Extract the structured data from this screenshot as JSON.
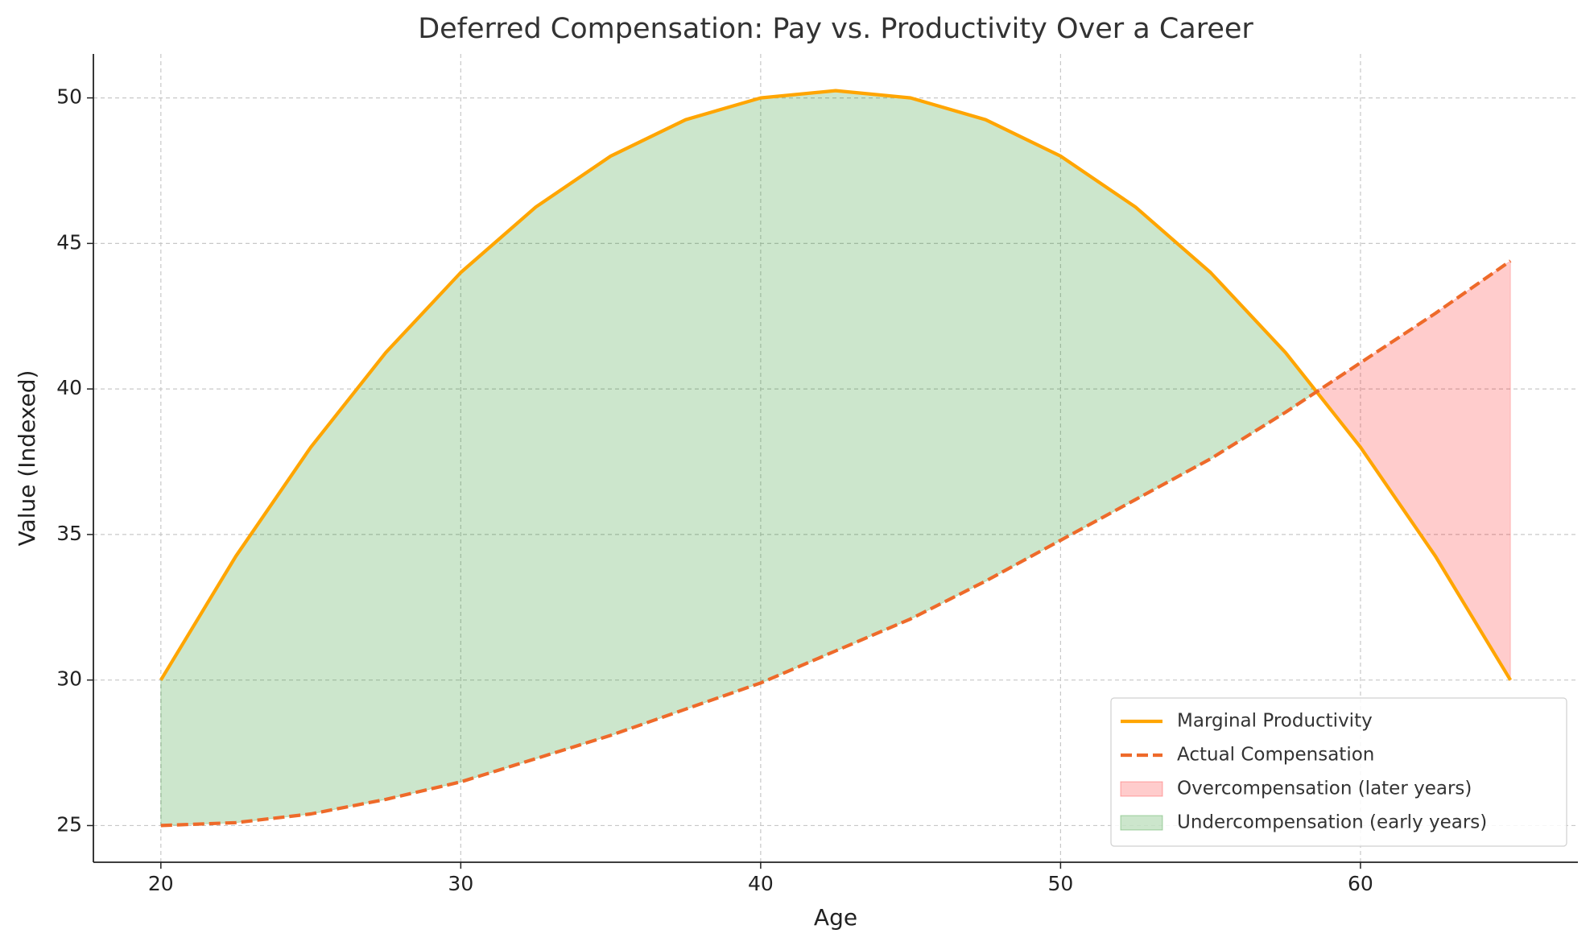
{
  "chart_data": {
    "type": "line",
    "title": "Deferred Compensation: Pay vs. Productivity Over a Career",
    "x_label": "Age",
    "y_label": "Value (Indexed)",
    "x": [
      20,
      22.5,
      25,
      27.5,
      30,
      32.5,
      35,
      37.5,
      40,
      42.5,
      45,
      47.5,
      50,
      52.5,
      55,
      57.5,
      60,
      62.5,
      65
    ],
    "series": [
      {
        "name": "Marginal Productivity",
        "color": "#ffa500",
        "dash": false,
        "values": [
          30,
          34.25,
          38,
          41.25,
          44,
          46.25,
          48,
          49.25,
          50,
          50.25,
          50,
          49.25,
          48,
          46.25,
          44,
          41.25,
          38,
          34.25,
          30
        ]
      },
      {
        "name": "Actual Compensation",
        "color": "#ee6a2a",
        "dash": true,
        "values": [
          25,
          25.1,
          25.4,
          25.9,
          26.5,
          27.3,
          28.1,
          29.0,
          29.9,
          31.0,
          32.1,
          33.4,
          34.8,
          36.2,
          37.6,
          39.2,
          40.9,
          42.6,
          44.4
        ]
      }
    ],
    "fills": [
      {
        "name": "Overcompensation (later years)",
        "color": "red",
        "opacity": 0.2,
        "where": "second_above"
      },
      {
        "name": "Undercompensation (early years)",
        "color": "green",
        "opacity": 0.2,
        "where": "first_above"
      }
    ],
    "xlim": [
      17.75,
      67.25
    ],
    "ylim": [
      23.74,
      51.51
    ],
    "xticks": [
      20,
      30,
      40,
      50,
      60
    ],
    "yticks": [
      25,
      30,
      35,
      40,
      45,
      50
    ],
    "grid": true,
    "legend": "lower right"
  }
}
